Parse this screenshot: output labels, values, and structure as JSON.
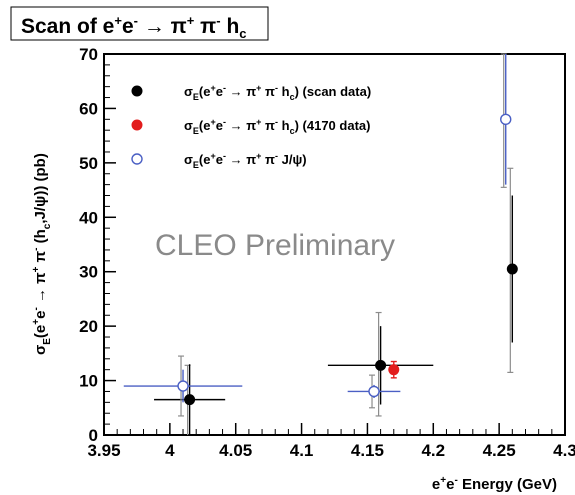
{
  "title": "Scan of e⁺e⁻ → π⁺ π⁻ hᴄ",
  "title_parts": {
    "base1": "Scan of e",
    "sup1": "+",
    "base2": "e",
    "sup2": "-",
    "arrow": " → π",
    "sup3": "+",
    "base3": " π",
    "sup4": "-",
    "base4": " h",
    "sub1": "c"
  },
  "watermark": "CLEO Preliminary",
  "colors": {
    "scan": "#000000",
    "ref4170": "#e21d1d",
    "jpsi": "#4a5fc4",
    "err4170": "#7a7a7a"
  },
  "chart_data": {
    "type": "scatter",
    "title": "Scan of e+e- → π+ π- hc",
    "xlabel": "e+e- Energy  (GeV)",
    "ylabel": "σE(e+e- → π+ π- (hc,J/ψ)) (pb)",
    "xlim": [
      3.95,
      4.3
    ],
    "ylim": [
      0,
      70
    ],
    "xticks": [
      "3.95",
      "4",
      "4.05",
      "4.1",
      "4.15",
      "4.2",
      "4.25",
      "4.3"
    ],
    "xtick_values": [
      3.95,
      4.0,
      4.05,
      4.1,
      4.15,
      4.2,
      4.25,
      4.3
    ],
    "yticks": [
      "0",
      "10",
      "20",
      "30",
      "40",
      "50",
      "60",
      "70"
    ],
    "ytick_values": [
      0,
      10,
      20,
      30,
      40,
      50,
      60,
      70
    ],
    "grid": false,
    "legend_placement": "top-left",
    "xlabel_parts": {
      "b1": "e",
      "s1": "+",
      "b2": "e",
      "s2": "-",
      "b3": " Energy  (GeV)"
    },
    "ylabel_parts": {
      "b1": "σ",
      "sub1": "E",
      "b2": "(e",
      "s1": "+",
      "b3": "e",
      "s2": "-",
      "b4": " → π",
      "s3": "+",
      "b5": " π",
      "s4": "-",
      "b6": " (h",
      "sub2": "c",
      "b7": ",J/ψ)) (pb)"
    },
    "legend": [
      {
        "b1": "σ",
        "sub1": "E",
        "b2": "(e",
        "s1": "+",
        "b3": "e",
        "s2": "-",
        "b4": " → π",
        "s3": "+",
        "b5": " π",
        "s4": "-",
        "b6": " h",
        "sub2": "c",
        "b7": ") (scan data)"
      },
      {
        "b1": "σ",
        "sub1": "E",
        "b2": "(e",
        "s1": "+",
        "b3": "e",
        "s2": "-",
        "b4": " → π",
        "s3": "+",
        "b5": " π",
        "s4": "-",
        "b6": " h",
        "sub2": "c",
        "b7": ") (4170 data)"
      },
      {
        "b1": "σ",
        "sub1": "E",
        "b2": "(e",
        "s1": "+",
        "b3": "e",
        "s2": "-",
        "b4": " → π",
        "s3": "+",
        "b5": " π",
        "s4": "-",
        "b6": " J/ψ)",
        "sub2": "",
        "b7": ""
      }
    ],
    "series": [
      {
        "marker": "filled-circle",
        "color": "#000000",
        "points": [
          {
            "x": 4.015,
            "y": 6.5,
            "xerr": 0.027,
            "yerr_stat": 6.5,
            "yerr_sys_hi": 12.8,
            "yerr_sys_lo": 0
          },
          {
            "x": 4.16,
            "y": 12.8,
            "xerr": 0.04,
            "yerr_stat": 7.2,
            "yerr_sys_hi": 22.5,
            "yerr_sys_lo": 3.5
          },
          {
            "x": 4.26,
            "y": 30.5,
            "xerr": 0,
            "yerr_stat": 13.5,
            "yerr_sys_hi": 49,
            "yerr_sys_lo": 11.5
          }
        ]
      },
      {
        "marker": "filled-circle",
        "color": "#e21d1d",
        "points": [
          {
            "x": 4.17,
            "y": 12.0,
            "xerr": 0,
            "yerr_stat": 1.5,
            "yerr_sys_hi": 0,
            "yerr_sys_lo": 0
          }
        ]
      },
      {
        "marker": "open-circle",
        "color": "#4a5fc4",
        "points": [
          {
            "x": 4.01,
            "y": 9.0,
            "xerr": 0.045,
            "yerr_stat": 3.0,
            "yerr_sys_hi": 14.5,
            "yerr_sys_lo": 3.5
          },
          {
            "x": 4.155,
            "y": 8.0,
            "xerr": 0.02,
            "yerr_stat": 1.2,
            "yerr_sys_hi": 11,
            "yerr_sys_lo": 5.0
          },
          {
            "x": 4.255,
            "y": 58.0,
            "xerr": 0,
            "yerr_stat": 12.0,
            "yerr_sys_hi": 70,
            "yerr_sys_lo": 45.5
          }
        ]
      }
    ]
  }
}
